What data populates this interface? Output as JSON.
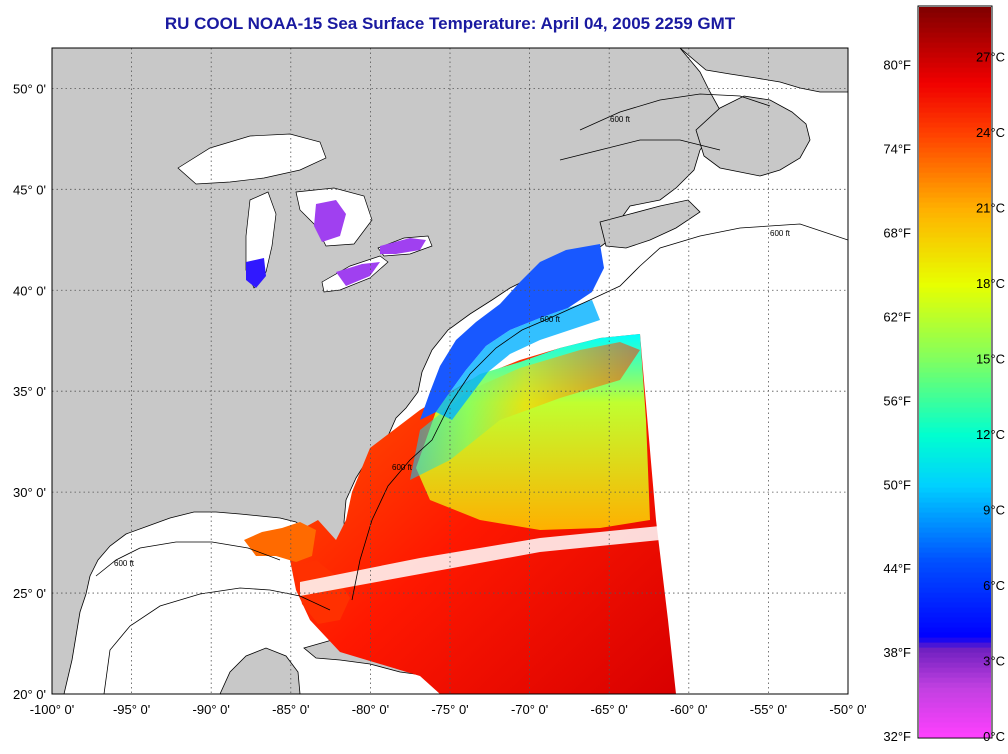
{
  "title": "RU COOL  NOAA-15  Sea Surface Temperature:  April 04, 2005 2259 GMT",
  "map": {
    "lon_range": [
      -100,
      -50
    ],
    "lat_range": [
      20,
      52
    ],
    "lon_ticks": [
      {
        "v": -100,
        "label": "-100° 0'"
      },
      {
        "v": -95,
        "label": "-95° 0'"
      },
      {
        "v": -90,
        "label": "-90° 0'"
      },
      {
        "v": -85,
        "label": "-85° 0'"
      },
      {
        "v": -80,
        "label": "-80° 0'"
      },
      {
        "v": -75,
        "label": "-75° 0'"
      },
      {
        "v": -70,
        "label": "-70° 0'"
      },
      {
        "v": -65,
        "label": "-65° 0'"
      },
      {
        "v": -60,
        "label": "-60° 0'"
      },
      {
        "v": -55,
        "label": "-55° 0'"
      },
      {
        "v": -50,
        "label": "-50° 0'"
      }
    ],
    "lat_ticks": [
      {
        "v": 20,
        "label": "20° 0'"
      },
      {
        "v": 25,
        "label": "25° 0'"
      },
      {
        "v": 30,
        "label": "30° 0'"
      },
      {
        "v": 35,
        "label": "35° 0'"
      },
      {
        "v": 40,
        "label": "40° 0'"
      },
      {
        "v": 45,
        "label": "45° 0'"
      },
      {
        "v": 50,
        "label": "50° 0'"
      }
    ],
    "contour_label": "600 ft",
    "colors": {
      "land": "#c8c8c8",
      "no_data": "#ffffff",
      "grid": "#555555"
    }
  },
  "colorbar": {
    "range_c": [
      0,
      29
    ],
    "fahrenheit_labels": [
      "80°F",
      "74°F",
      "68°F",
      "62°F",
      "56°F",
      "50°F",
      "44°F",
      "38°F",
      "32°F"
    ],
    "celsius_labels": [
      "27°C",
      "24°C",
      "21°C",
      "18°C",
      "15°C",
      "12°C",
      "9°C",
      "6°C",
      "3°C",
      "0°C"
    ],
    "stops": [
      {
        "c": 0,
        "color": "#ff40ff"
      },
      {
        "c": 2,
        "color": "#c040e0"
      },
      {
        "c": 3.5,
        "color": "#7020c0"
      },
      {
        "c": 4,
        "color": "#0000ff"
      },
      {
        "c": 7,
        "color": "#0050ff"
      },
      {
        "c": 10,
        "color": "#00d0ff"
      },
      {
        "c": 12,
        "color": "#00ffd0"
      },
      {
        "c": 15,
        "color": "#80ff60"
      },
      {
        "c": 18,
        "color": "#e8ff00"
      },
      {
        "c": 21,
        "color": "#ffb000"
      },
      {
        "c": 24,
        "color": "#ff4000"
      },
      {
        "c": 26,
        "color": "#f00000"
      },
      {
        "c": 29,
        "color": "#800000"
      }
    ]
  }
}
